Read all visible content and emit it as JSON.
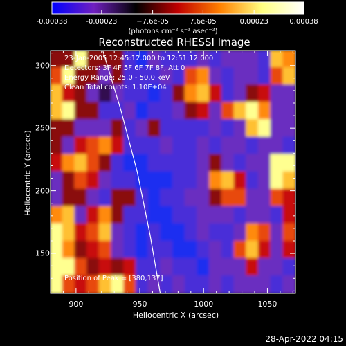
{
  "colorbar": {
    "tick_labels": [
      "-0.00038",
      "-0.00023",
      "−7.6e-05",
      "7.6e-05",
      "0.00023",
      "0.00038"
    ],
    "tick_values": [
      -0.00038,
      -0.00023,
      -7.6e-05,
      7.6e-05,
      0.00023,
      0.00038
    ],
    "range": [
      -0.00038,
      0.00038
    ],
    "units_label": "(photons cm⁻² s⁻¹ asec⁻²)",
    "colors": [
      "#0000ff",
      "#7020c0",
      "#000000",
      "#c00000",
      "#ff8000",
      "#ffff80",
      "#ffffff"
    ]
  },
  "chart_data": {
    "type": "heatmap",
    "title": "Reconstructed RHESSI Image",
    "xlabel": "Heliocentric X (arcsec)",
    "ylabel": "Heliocentric Y (arcsec)",
    "xlim": [
      880,
      1072
    ],
    "ylim": [
      118,
      312
    ],
    "x_ticks": [
      900,
      950,
      1000,
      1050
    ],
    "y_ticks": [
      150,
      200,
      250,
      300
    ],
    "annotations": {
      "time_range": "23-Jan-2005 12:45:12.000 to 12:51:12.000",
      "detectors": "Detectors: 3F 4F 5F 6F 7F 8F, Att 0",
      "energy_range": "Energy Range: 25.0 - 50.0 keV",
      "method_counts": "Clean    Total counts: 1.10E+04",
      "peak_position": "Position of Peak = [380,137]"
    },
    "limb_curve": {
      "x": [
        921,
        935,
        948,
        958,
        966
      ],
      "y": [
        312,
        265,
        215,
        165,
        118
      ]
    },
    "intensity_grid_rows": [
      [
        0.2,
        0.1,
        0.9,
        0.2,
        0.1,
        0.2,
        -0.5,
        -0.7,
        -0.4,
        -0.5,
        -0.6,
        -0.5,
        -0.4,
        -0.5,
        -0.3,
        -0.3,
        -0.4,
        -0.5,
        0.8,
        0.7
      ],
      [
        0.6,
        0.9,
        0.2,
        0.1,
        -0.4,
        0.1,
        -0.5,
        -0.6,
        -0.5,
        -0.4,
        -0.6,
        0.6,
        0.7,
        -0.4,
        -0.5,
        -0.4,
        -0.3,
        -0.5,
        0.5,
        0.8
      ],
      [
        0.85,
        0.3,
        0.1,
        -0.3,
        -0.2,
        -0.4,
        -0.5,
        -0.6,
        -0.7,
        -0.5,
        0.1,
        0.7,
        0.8,
        0.3,
        -0.5,
        -0.4,
        0.1,
        0.4,
        -0.3,
        -0.4
      ],
      [
        0.8,
        0.9,
        0.2,
        0.2,
        -0.5,
        -0.6,
        -0.3,
        -0.7,
        -0.6,
        -0.5,
        -0.4,
        0.2,
        0.3,
        -0.3,
        0.5,
        0.8,
        0.9,
        0.7,
        -0.3,
        -0.4
      ],
      [
        0.2,
        0.1,
        -0.4,
        -0.3,
        -0.4,
        0.1,
        -0.5,
        -0.4,
        0.2,
        -0.5,
        -0.6,
        -0.5,
        -0.6,
        -0.4,
        -0.5,
        -0.4,
        0.85,
        0.9,
        -0.3,
        -0.4
      ],
      [
        0.1,
        -0.3,
        0.3,
        0.6,
        0.7,
        0.4,
        -0.5,
        -0.6,
        -0.5,
        -0.4,
        -0.5,
        -0.6,
        -0.4,
        -0.5,
        -0.3,
        -0.4,
        -0.5,
        -0.3,
        -0.4,
        -0.5
      ],
      [
        0.3,
        0.7,
        0.8,
        0.5,
        0.2,
        -0.6,
        -0.7,
        -0.8,
        -0.6,
        -0.5,
        -0.6,
        -0.5,
        -0.4,
        0.2,
        -0.4,
        -0.5,
        -0.4,
        -0.3,
        0.9,
        1.0
      ],
      [
        -0.3,
        0.2,
        0.6,
        0.3,
        -0.4,
        -0.5,
        -0.6,
        -0.7,
        -0.9,
        -0.7,
        -0.5,
        -0.6,
        -0.4,
        0.7,
        0.8,
        0.3,
        -0.5,
        -0.4,
        0.95,
        0.8
      ],
      [
        -0.4,
        0.1,
        0.2,
        -0.4,
        -0.5,
        0.2,
        0.1,
        -0.6,
        -0.8,
        -0.6,
        -0.5,
        -0.4,
        -0.3,
        0.2,
        0.6,
        0.5,
        -0.4,
        -0.3,
        0.5,
        0.3
      ],
      [
        0.7,
        0.8,
        -0.3,
        0.4,
        0.7,
        0.2,
        -0.5,
        -0.6,
        -0.7,
        -0.8,
        -0.6,
        -0.5,
        -0.4,
        -0.3,
        -0.4,
        -0.5,
        -0.3,
        -0.4,
        -0.5,
        0.4
      ],
      [
        0.9,
        0.8,
        0.3,
        0.6,
        0.8,
        -0.3,
        -0.5,
        -0.7,
        -0.6,
        -0.7,
        -0.9,
        -0.6,
        -0.4,
        -0.5,
        -0.6,
        -0.4,
        0.7,
        0.5,
        -0.3,
        0.5
      ],
      [
        0.95,
        0.7,
        0.2,
        0.3,
        0.5,
        -0.4,
        -0.6,
        -0.8,
        -0.6,
        -0.5,
        -0.7,
        -0.8,
        -0.5,
        -0.4,
        -0.5,
        0.6,
        0.8,
        0.3,
        -0.4,
        0.3
      ],
      [
        1.0,
        0.95,
        0.6,
        0.2,
        0.3,
        0.2,
        0.4,
        -0.6,
        -0.5,
        -0.4,
        -0.5,
        -0.6,
        -0.7,
        -0.4,
        -0.3,
        -0.4,
        0.3,
        -0.3,
        -0.4,
        -0.5
      ],
      [
        0.9,
        0.6,
        0.3,
        0.5,
        0.8,
        0.9,
        0.6,
        -0.5,
        -0.4,
        -0.5,
        -0.3,
        -0.6,
        -0.5,
        -0.4,
        -0.5,
        -0.4,
        -0.3,
        -0.4,
        -0.5,
        -0.4
      ]
    ]
  },
  "timestamp": "28-Apr-2022 04:15"
}
